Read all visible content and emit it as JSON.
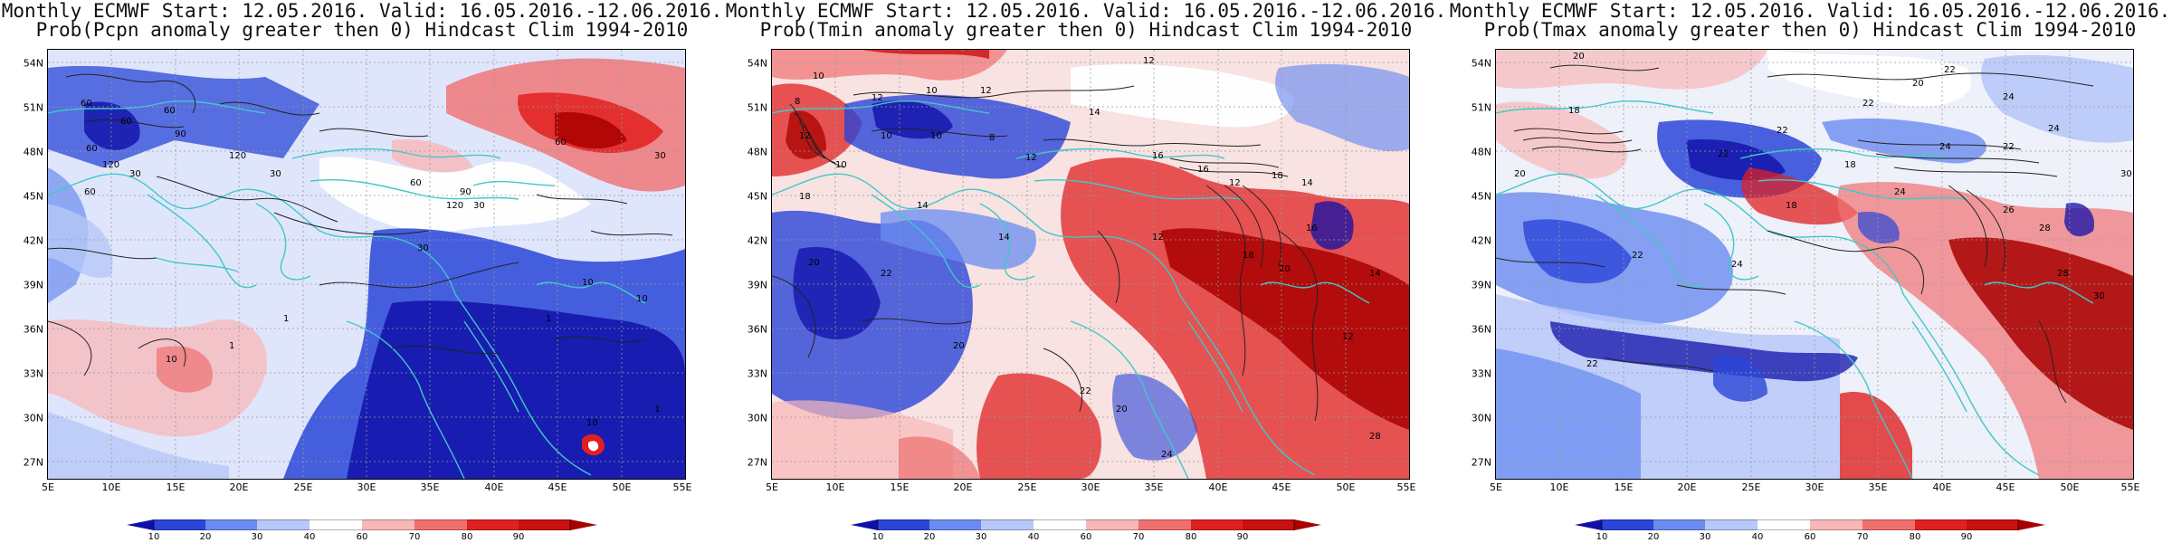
{
  "panels": [
    {
      "title_line1": "Monthly ECMWF Start: 12.05.2016. Valid: 16.05.2016.-12.06.2016.",
      "title_line2": "Prob(Pcpn anomaly greater then 0) Hindcast Clim 1994-2010",
      "contour_labels": [
        "60",
        "60",
        "60",
        "90",
        "60",
        "120",
        "30",
        "60",
        "120",
        "30",
        "60",
        "90",
        "30",
        "30",
        "120",
        "60",
        "30",
        "1",
        "10",
        "10",
        "1",
        "10",
        "1",
        "1",
        "10"
      ]
    },
    {
      "title_line1": "Monthly ECMWF Start: 12.05.2016. Valid: 16.05.2016.-12.06.2016.",
      "title_line2": "Prob(Tmin anomaly greater then 0) Hindcast Clim 1994-2010",
      "contour_labels": [
        "12",
        "10",
        "8",
        "12",
        "10",
        "12",
        "14",
        "10",
        "12",
        "10",
        "8",
        "12",
        "10",
        "18",
        "14",
        "16",
        "16",
        "12",
        "14",
        "18",
        "20",
        "14",
        "12",
        "18",
        "20",
        "22",
        "24",
        "20",
        "22",
        "28",
        "12",
        "14",
        "16",
        "20"
      ]
    },
    {
      "title_line1": "Monthly ECMWF Start: 12.05.2016. Valid: 16.05.2016.-12.06.2016.",
      "title_line2": "Prob(Tmax anomaly greater then 0) Hindcast Clim 1994-2010",
      "contour_labels": [
        "20",
        "22",
        "20",
        "24",
        "18",
        "22",
        "22",
        "22",
        "24",
        "18",
        "24",
        "22",
        "20",
        "18",
        "24",
        "26",
        "28",
        "30",
        "22",
        "30",
        "24",
        "22",
        "28"
      ]
    }
  ],
  "lat_labels": [
    "54N",
    "51N",
    "48N",
    "45N",
    "42N",
    "39N",
    "36N",
    "33N",
    "30N",
    "27N"
  ],
  "lon_labels": [
    "5E",
    "10E",
    "15E",
    "20E",
    "25E",
    "30E",
    "35E",
    "40E",
    "45E",
    "50E",
    "55E"
  ],
  "colorbar": {
    "ticks": [
      "10",
      "20",
      "30",
      "40",
      "60",
      "70",
      "80",
      "90"
    ],
    "colors": [
      "#1010a8",
      "#2a45d8",
      "#6a8cf0",
      "#b7c8f8",
      "#ffffff",
      "#f8b8b8",
      "#f07070",
      "#e02020",
      "#a80000"
    ]
  },
  "palette": {
    "coast": "#40c8c8",
    "contour": "#222222",
    "grid": "#999999"
  }
}
